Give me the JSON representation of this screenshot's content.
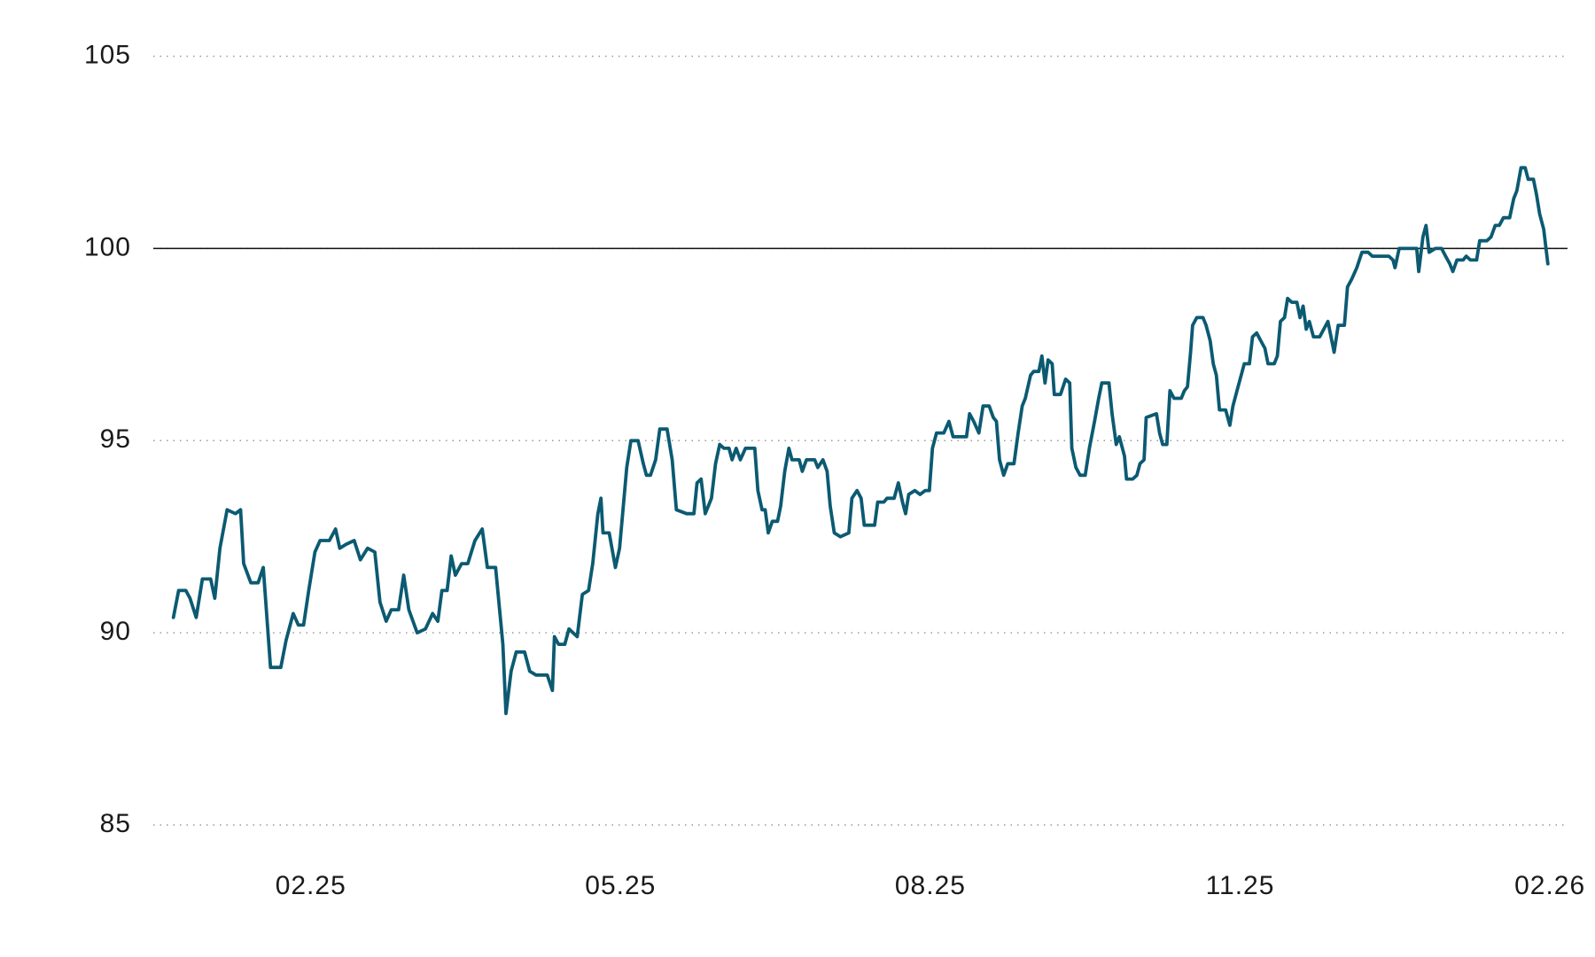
{
  "chart_data": {
    "type": "line",
    "x": [
      0.67,
      0.72,
      0.79,
      0.83,
      0.89,
      0.95,
      1.03,
      1.07,
      1.12,
      1.19,
      1.27,
      1.32,
      1.35,
      1.42,
      1.49,
      1.54,
      1.61,
      1.71,
      1.76,
      1.83,
      1.88,
      1.93,
      1.98,
      2.04,
      2.09,
      2.18,
      2.24,
      2.28,
      2.34,
      2.42,
      2.48,
      2.55,
      2.62,
      2.67,
      2.73,
      2.78,
      2.85,
      2.9,
      2.95,
      3.03,
      3.11,
      3.18,
      3.23,
      3.27,
      3.32,
      3.36,
      3.4,
      3.46,
      3.52,
      3.59,
      3.66,
      3.71,
      3.79,
      3.86,
      3.89,
      3.94,
      3.99,
      4.07,
      4.12,
      4.18,
      4.29,
      4.34,
      4.36,
      4.4,
      4.46,
      4.5,
      4.58,
      4.63,
      4.69,
      4.73,
      4.78,
      4.81,
      4.83,
      4.89,
      4.95,
      4.99,
      5.06,
      5.1,
      5.17,
      5.22,
      5.25,
      5.29,
      5.34,
      5.38,
      5.45,
      5.5,
      5.54,
      5.64,
      5.71,
      5.74,
      5.78,
      5.82,
      5.88,
      5.92,
      5.96,
      6.0,
      6.05,
      6.08,
      6.12,
      6.16,
      6.21,
      6.3,
      6.33,
      6.37,
      6.4,
      6.43,
      6.47,
      6.52,
      6.55,
      6.59,
      6.63,
      6.66,
      6.73,
      6.76,
      6.8,
      6.88,
      6.91,
      6.96,
      7.0,
      7.03,
      7.07,
      7.13,
      7.21,
      7.24,
      7.29,
      7.33,
      7.36,
      7.43,
      7.46,
      7.49,
      7.55,
      7.58,
      7.65,
      7.69,
      7.73,
      7.76,
      7.79,
      7.85,
      7.9,
      7.95,
      7.99,
      8.02,
      8.06,
      8.13,
      8.18,
      8.22,
      8.3,
      8.35,
      8.38,
      8.42,
      8.47,
      8.51,
      8.57,
      8.61,
      8.64,
      8.67,
      8.71,
      8.75,
      8.81,
      8.85,
      8.89,
      8.92,
      8.97,
      9.0,
      9.05,
      9.08,
      9.11,
      9.14,
      9.18,
      9.2,
      9.26,
      9.31,
      9.35,
      9.37,
      9.41,
      9.45,
      9.5,
      9.54,
      9.59,
      9.63,
      9.66,
      9.73,
      9.76,
      9.8,
      9.83,
      9.88,
      9.9,
      9.96,
      10.0,
      10.03,
      10.07,
      10.09,
      10.19,
      10.22,
      10.25,
      10.29,
      10.32,
      10.36,
      10.43,
      10.46,
      10.49,
      10.52,
      10.54,
      10.58,
      10.64,
      10.67,
      10.71,
      10.74,
      10.77,
      10.8,
      10.86,
      10.9,
      10.93,
      10.97,
      11.01,
      11.04,
      11.09,
      11.12,
      11.16,
      11.2,
      11.24,
      11.27,
      11.33,
      11.36,
      11.39,
      11.43,
      11.46,
      11.5,
      11.55,
      11.58,
      11.61,
      11.64,
      11.67,
      11.71,
      11.77,
      11.81,
      11.85,
      11.88,
      11.91,
      11.95,
      12.01,
      12.04,
      12.08,
      12.13,
      12.18,
      12.24,
      12.28,
      12.44,
      12.48,
      12.5,
      12.54,
      12.71,
      12.73,
      12.77,
      12.8,
      12.83,
      12.89,
      12.95,
      12.99,
      13.03,
      13.06,
      13.1,
      13.16,
      13.19,
      13.23,
      13.29,
      13.32,
      13.39,
      13.43,
      13.47,
      13.51,
      13.55,
      13.61,
      13.65,
      13.68,
      13.72,
      13.76,
      13.79,
      13.84,
      13.87,
      13.9,
      13.94,
      13.98
    ],
    "series": [
      {
        "color": "#0b5a72",
        "values": [
          90.4,
          91.1,
          91.1,
          90.9,
          90.4,
          91.4,
          91.4,
          90.9,
          92.2,
          93.2,
          93.1,
          93.2,
          91.8,
          91.3,
          91.3,
          91.7,
          89.1,
          89.1,
          89.8,
          90.5,
          90.2,
          90.2,
          91.1,
          92.1,
          92.4,
          92.4,
          92.7,
          92.2,
          92.3,
          92.4,
          91.9,
          92.2,
          92.1,
          90.8,
          90.3,
          90.6,
          90.6,
          91.5,
          90.6,
          90.0,
          90.1,
          90.5,
          90.3,
          91.1,
          91.1,
          92.0,
          91.5,
          91.8,
          91.8,
          92.4,
          92.7,
          91.7,
          91.7,
          89.7,
          87.9,
          89.0,
          89.5,
          89.5,
          89.0,
          88.9,
          88.9,
          88.5,
          89.9,
          89.7,
          89.7,
          90.1,
          89.9,
          91.0,
          91.1,
          91.8,
          93.1,
          93.5,
          92.6,
          92.6,
          91.7,
          92.2,
          94.3,
          95.0,
          95.0,
          94.4,
          94.1,
          94.1,
          94.5,
          95.3,
          95.3,
          94.5,
          93.2,
          93.1,
          93.1,
          93.9,
          94.0,
          93.1,
          93.5,
          94.4,
          94.9,
          94.8,
          94.8,
          94.5,
          94.8,
          94.5,
          94.8,
          94.8,
          93.7,
          93.2,
          93.2,
          92.6,
          92.9,
          92.9,
          93.3,
          94.2,
          94.8,
          94.5,
          94.5,
          94.2,
          94.5,
          94.5,
          94.3,
          94.5,
          94.2,
          93.3,
          92.6,
          92.5,
          92.6,
          93.5,
          93.7,
          93.5,
          92.8,
          92.8,
          92.8,
          93.4,
          93.4,
          93.5,
          93.5,
          93.9,
          93.4,
          93.1,
          93.6,
          93.7,
          93.6,
          93.7,
          93.7,
          94.8,
          95.2,
          95.2,
          95.5,
          95.1,
          95.1,
          95.1,
          95.7,
          95.5,
          95.2,
          95.9,
          95.9,
          95.6,
          95.5,
          94.5,
          94.1,
          94.4,
          94.4,
          95.2,
          95.9,
          96.1,
          96.7,
          96.8,
          96.8,
          97.2,
          96.5,
          97.1,
          97.0,
          96.2,
          96.2,
          96.6,
          96.5,
          94.8,
          94.3,
          94.1,
          94.1,
          94.8,
          95.5,
          96.1,
          96.5,
          96.5,
          95.7,
          94.9,
          95.1,
          94.6,
          94.0,
          94.0,
          94.1,
          94.4,
          94.5,
          95.6,
          95.7,
          95.2,
          94.9,
          94.9,
          96.3,
          96.1,
          96.1,
          96.3,
          96.4,
          97.3,
          98.0,
          98.2,
          98.2,
          98.0,
          97.6,
          97.0,
          96.7,
          95.8,
          95.8,
          95.4,
          95.9,
          96.3,
          96.7,
          97.0,
          97.0,
          97.7,
          97.8,
          97.6,
          97.4,
          97.0,
          97.0,
          97.2,
          98.1,
          98.2,
          98.7,
          98.6,
          98.6,
          98.2,
          98.5,
          97.9,
          98.1,
          97.7,
          97.7,
          97.9,
          98.1,
          97.7,
          97.3,
          98.0,
          98.0,
          99.0,
          99.2,
          99.5,
          99.9,
          99.9,
          99.8,
          99.8,
          99.7,
          99.5,
          100.0,
          100.0,
          99.4,
          100.3,
          100.6,
          99.9,
          100.0,
          100.0,
          99.8,
          99.6,
          99.4,
          99.7,
          99.7,
          99.8,
          99.7,
          99.7,
          100.2,
          100.2,
          100.3,
          100.6,
          100.6,
          100.8,
          100.8,
          101.3,
          101.5,
          102.1,
          102.1,
          101.8,
          101.8,
          101.4,
          100.9,
          100.5,
          99.6
        ]
      }
    ],
    "xlim": [
      0.48,
      14.15
    ],
    "xticks": [
      {
        "value": 2,
        "label": "02.25"
      },
      {
        "value": 5,
        "label": "05.25"
      },
      {
        "value": 8,
        "label": "08.25"
      },
      {
        "value": 11,
        "label": "11.25"
      },
      {
        "value": 14,
        "label": "02.26"
      }
    ],
    "ylim": [
      85,
      105
    ],
    "yticks": [
      85,
      90,
      95,
      100,
      105
    ],
    "grid": true,
    "reference_line": 100
  }
}
